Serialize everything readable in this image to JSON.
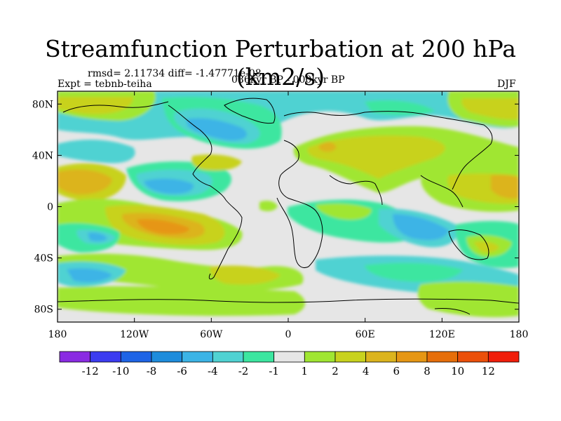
{
  "title": "Streamfunction Perturbation at 200 hPa (km2/s)",
  "stats": "rmsd= 2.11734 diff= -1.47771e-08",
  "experiment": "Expt = tebnb-teiha",
  "period": "086kyr BP - 000kyr BP",
  "season": "DJF",
  "axes": {
    "y_ticks": [
      {
        "label": "80N",
        "lat": 80
      },
      {
        "label": "40N",
        "lat": 40
      },
      {
        "label": "0",
        "lat": 0
      },
      {
        "label": "40S",
        "lat": -40
      },
      {
        "label": "80S",
        "lat": -80
      }
    ],
    "x_ticks": [
      {
        "label": "180",
        "lon": -180
      },
      {
        "label": "120W",
        "lon": -120
      },
      {
        "label": "60W",
        "lon": -60
      },
      {
        "label": "0",
        "lon": 0
      },
      {
        "label": "60E",
        "lon": 60
      },
      {
        "label": "120E",
        "lon": 120
      },
      {
        "label": "180",
        "lon": 180
      }
    ],
    "lon_range": [
      -180,
      180
    ],
    "lat_range": [
      -90,
      90
    ]
  },
  "colorbar": {
    "colors": [
      "#8a2be2",
      "#3c3cf0",
      "#1e64e6",
      "#1e8cdc",
      "#3cb4e6",
      "#50d2d2",
      "#3ce6a0",
      "#e6e6e6",
      "#a0e632",
      "#c8d21e",
      "#dcb41e",
      "#e69614",
      "#e66e0a",
      "#eb500a",
      "#f01e0a"
    ],
    "labels": [
      "-12",
      "-10",
      "-8",
      "-6",
      "-4",
      "-2",
      "-1",
      "1",
      "2",
      "4",
      "6",
      "8",
      "10",
      "12"
    ]
  }
}
